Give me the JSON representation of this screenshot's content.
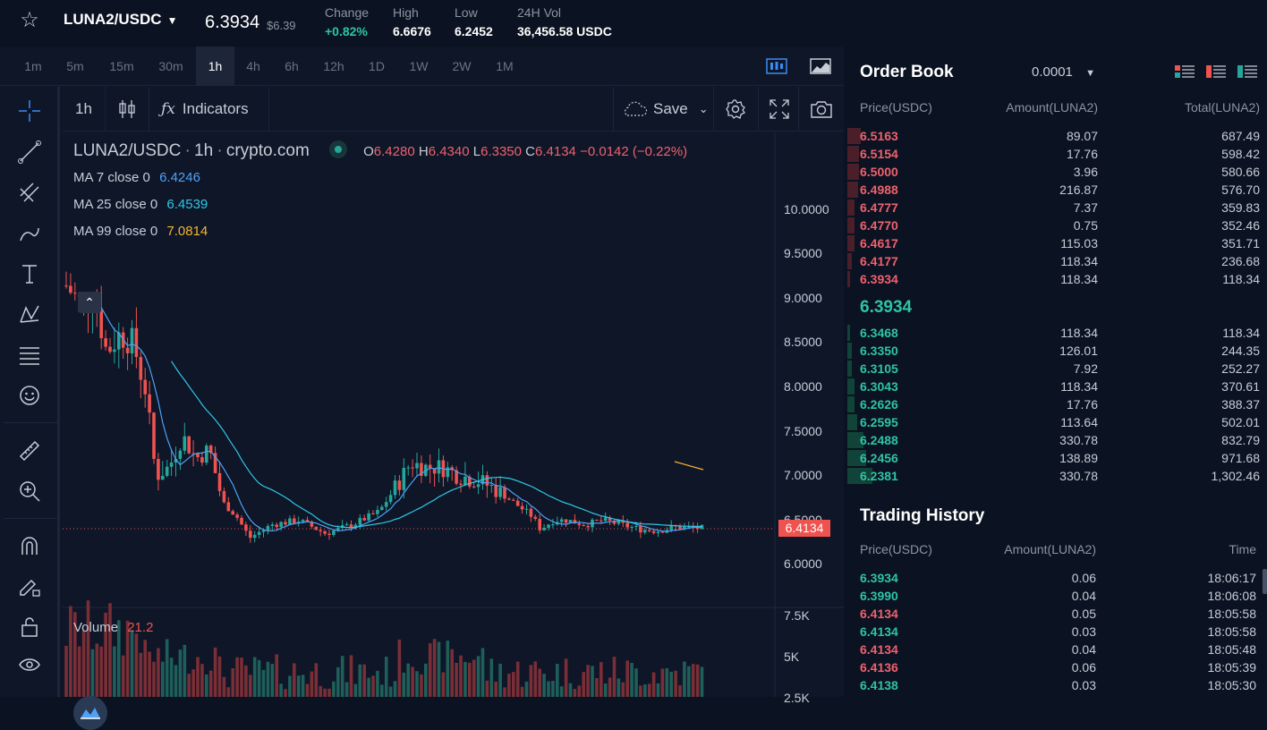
{
  "header": {
    "pair": "LUNA2/USDC",
    "last_price": "6.3934",
    "last_price_usd": "$6.39",
    "stats": [
      {
        "label": "Change",
        "value": "+0.82%",
        "up": true
      },
      {
        "label": "High",
        "value": "6.6676"
      },
      {
        "label": "Low",
        "value": "6.2452"
      },
      {
        "label": "24H Vol",
        "value": "36,456.58 USDC"
      }
    ]
  },
  "timeframes": [
    "1m",
    "5m",
    "15m",
    "30m",
    "1h",
    "4h",
    "6h",
    "12h",
    "1D",
    "1W",
    "2W",
    "1M"
  ],
  "active_timeframe": "1h",
  "chart_toolbar": {
    "interval": "1h",
    "indicators_label": "Indicators",
    "save_label": "Save"
  },
  "legend": {
    "symbol": "LUNA2/USDC",
    "sep1": "·",
    "interval": "1h",
    "sep2": "·",
    "exchange": "crypto.com",
    "o_label": "O",
    "o": "6.4280",
    "h_label": "H",
    "h": "6.4340",
    "l_label": "L",
    "l": "6.3350",
    "c_label": "C",
    "c": "6.4134",
    "change": "−0.0142 (−0.22%)"
  },
  "ma": [
    {
      "label": "MA 7 close 0",
      "value": "6.4246",
      "color": "#4ea1f5"
    },
    {
      "label": "MA 25 close 0",
      "value": "6.4539",
      "color": "#31c7e6"
    },
    {
      "label": "MA 99 close 0",
      "value": "7.0814",
      "color": "#f5b531"
    }
  ],
  "volume_legend": {
    "label": "Volume",
    "value": "21.2"
  },
  "price_axis": [
    "10.0000",
    "9.5000",
    "9.0000",
    "8.5000",
    "8.0000",
    "7.5000",
    "7.0000",
    "6.5000",
    "6.0000"
  ],
  "volume_axis": [
    "7.5K",
    "5K",
    "2.5K"
  ],
  "current_price_tag": "6.4134",
  "colors": {
    "up": "#26a69a",
    "down": "#ef5350",
    "accent": "#3b8bf2",
    "teal": "#2ec4a5"
  },
  "order_book": {
    "title": "Order Book",
    "precision": "0.0001",
    "headers": {
      "price": "Price(USDC)",
      "amount": "Amount(LUNA2)",
      "total": "Total(LUNA2)"
    },
    "asks": [
      {
        "price": "6.5163",
        "amount": "89.07",
        "total": "687.49",
        "depth": 0.53
      },
      {
        "price": "6.5154",
        "amount": "17.76",
        "total": "598.42",
        "depth": 0.46
      },
      {
        "price": "6.5000",
        "amount": "3.96",
        "total": "580.66",
        "depth": 0.45
      },
      {
        "price": "6.4988",
        "amount": "216.87",
        "total": "576.70",
        "depth": 0.44
      },
      {
        "price": "6.4777",
        "amount": "7.37",
        "total": "359.83",
        "depth": 0.28
      },
      {
        "price": "6.4770",
        "amount": "0.75",
        "total": "352.46",
        "depth": 0.27
      },
      {
        "price": "6.4617",
        "amount": "115.03",
        "total": "351.71",
        "depth": 0.27
      },
      {
        "price": "6.4177",
        "amount": "118.34",
        "total": "236.68",
        "depth": 0.18
      },
      {
        "price": "6.3934",
        "amount": "118.34",
        "total": "118.34",
        "depth": 0.09
      }
    ],
    "mid_price": "6.3934",
    "bids": [
      {
        "price": "6.3468",
        "amount": "118.34",
        "total": "118.34",
        "depth": 0.09
      },
      {
        "price": "6.3350",
        "amount": "126.01",
        "total": "244.35",
        "depth": 0.19
      },
      {
        "price": "6.3105",
        "amount": "7.92",
        "total": "252.27",
        "depth": 0.19
      },
      {
        "price": "6.3043",
        "amount": "118.34",
        "total": "370.61",
        "depth": 0.28
      },
      {
        "price": "6.2626",
        "amount": "17.76",
        "total": "388.37",
        "depth": 0.3
      },
      {
        "price": "6.2595",
        "amount": "113.64",
        "total": "502.01",
        "depth": 0.39
      },
      {
        "price": "6.2488",
        "amount": "330.78",
        "total": "832.79",
        "depth": 0.64
      },
      {
        "price": "6.2456",
        "amount": "138.89",
        "total": "971.68",
        "depth": 0.75
      },
      {
        "price": "6.2381",
        "amount": "330.78",
        "total": "1,302.46",
        "depth": 1.0
      }
    ]
  },
  "trading_history": {
    "title": "Trading History",
    "headers": {
      "price": "Price(USDC)",
      "amount": "Amount(LUNA2)",
      "time": "Time"
    },
    "rows": [
      {
        "price": "6.3934",
        "amount": "0.06",
        "time": "18:06:17",
        "side": "buy"
      },
      {
        "price": "6.3990",
        "amount": "0.04",
        "time": "18:06:08",
        "side": "buy"
      },
      {
        "price": "6.4134",
        "amount": "0.05",
        "time": "18:05:58",
        "side": "sell"
      },
      {
        "price": "6.4134",
        "amount": "0.03",
        "time": "18:05:58",
        "side": "buy"
      },
      {
        "price": "6.4134",
        "amount": "0.04",
        "time": "18:05:48",
        "side": "sell"
      },
      {
        "price": "6.4136",
        "amount": "0.06",
        "time": "18:05:39",
        "side": "sell"
      },
      {
        "price": "6.4138",
        "amount": "0.03",
        "time": "18:05:30",
        "side": "buy"
      }
    ]
  }
}
